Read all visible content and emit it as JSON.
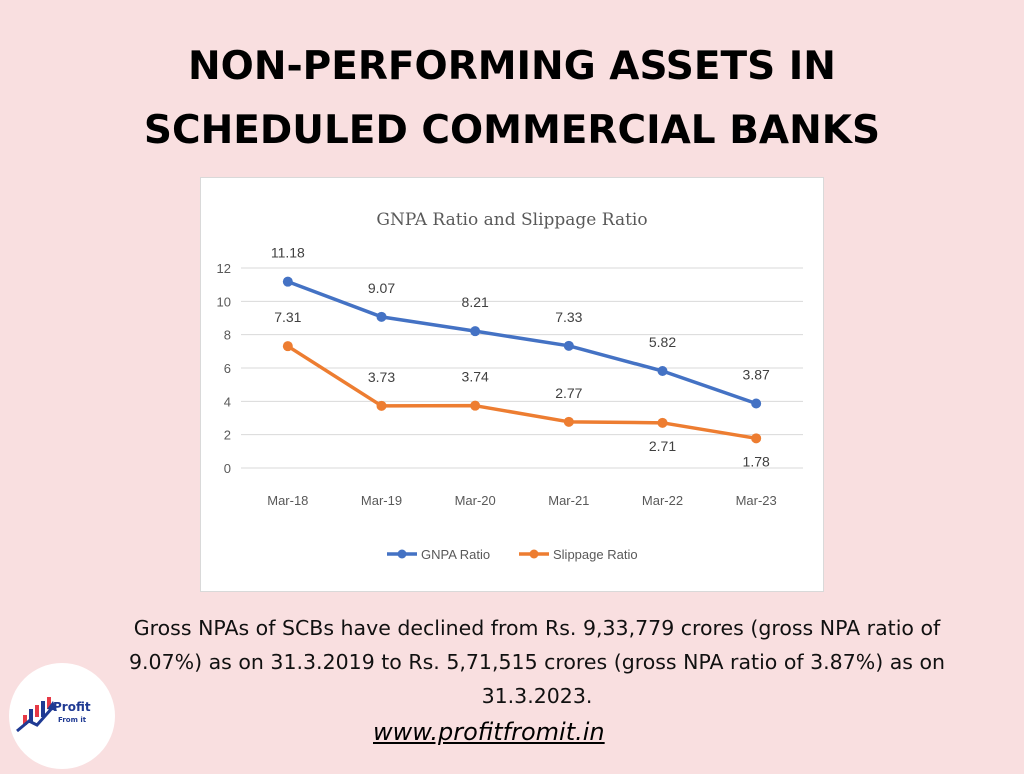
{
  "page": {
    "title_line1": "NON-PERFORMING ASSETS IN",
    "title_line2": "SCHEDULED COMMERCIAL BANKS",
    "description": "Gross NPAs of SCBs have declined from Rs. 9,33,779 crores (gross NPA ratio of 9.07%) as on 31.3.2019 to Rs. 5,71,515 crores (gross NPA ratio of 3.87%) as on 31.3.2023.",
    "website": "www.profitfromit.in",
    "logo": {
      "name": "Profit",
      "sub": "From it"
    }
  },
  "chart_data": {
    "type": "line",
    "title": "GNPA Ratio and Slippage Ratio",
    "categories": [
      "Mar-18",
      "Mar-19",
      "Mar-20",
      "Mar-21",
      "Mar-22",
      "Mar-23"
    ],
    "ylim": [
      0,
      12
    ],
    "yticks": [
      "0",
      "2",
      "4",
      "6",
      "8",
      "10",
      "12"
    ],
    "grid": true,
    "legend": "bottom",
    "series": [
      {
        "name": "GNPA Ratio",
        "color": "#4472c4",
        "values": [
          11.18,
          9.07,
          8.21,
          7.33,
          5.82,
          3.87
        ],
        "labels": [
          "11.18",
          "9.07",
          "8.21",
          "7.33",
          "5.82",
          "3.87"
        ],
        "label_position": "above"
      },
      {
        "name": "Slippage Ratio",
        "color": "#ed7d31",
        "values": [
          7.31,
          3.73,
          3.74,
          2.77,
          2.71,
          1.78
        ],
        "labels": [
          "7.31",
          "3.73",
          "3.74",
          "2.77",
          "2.71",
          "1.78"
        ],
        "label_position": [
          "above",
          "above",
          "above",
          "above",
          "below",
          "below"
        ]
      }
    ]
  }
}
